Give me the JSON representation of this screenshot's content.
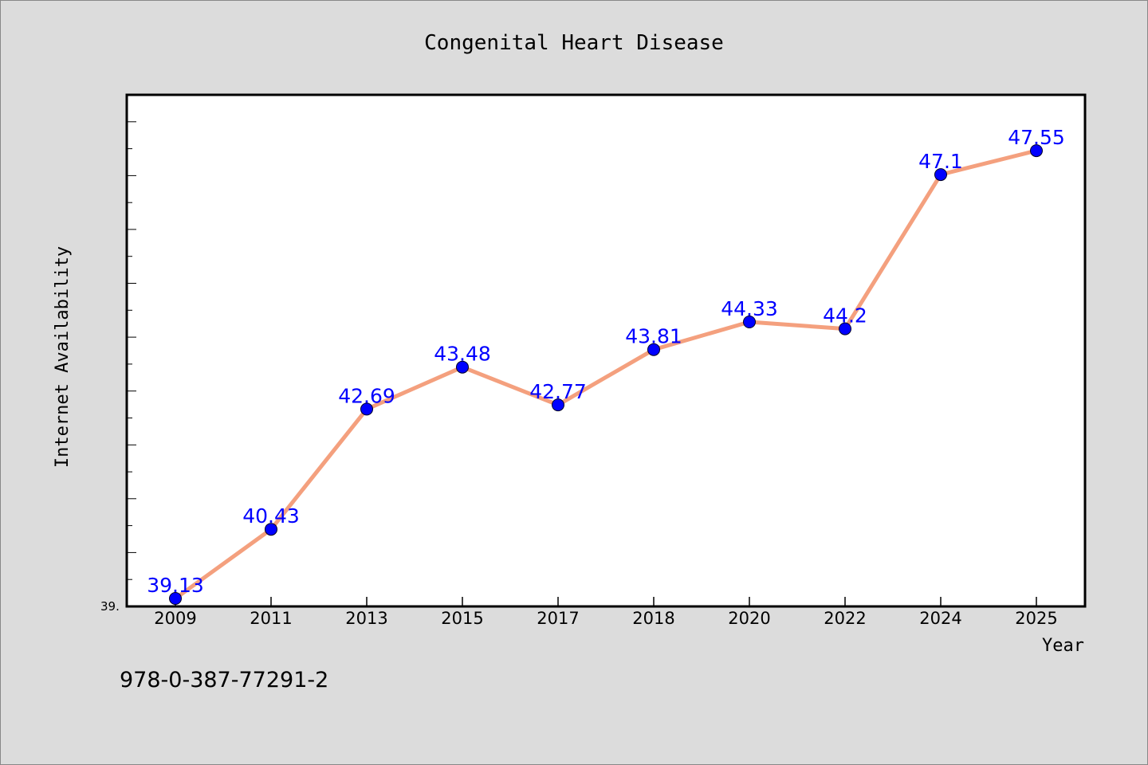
{
  "chart_data": {
    "type": "line",
    "title": "Congenital Heart Disease",
    "xlabel": "Year",
    "ylabel": "Internet Availability",
    "categories": [
      "2009",
      "2011",
      "2013",
      "2015",
      "2017",
      "2018",
      "2020",
      "2022",
      "2024",
      "2025"
    ],
    "series": [
      {
        "values": [
          39.13,
          40.43,
          42.69,
          43.48,
          42.77,
          43.81,
          44.33,
          44.2,
          47.1,
          47.55
        ],
        "data_labels": [
          "39.13",
          "40.43",
          "42.69",
          "43.48",
          "42.77",
          "43.81",
          "44.33",
          "44.2",
          "47.1",
          "47.55"
        ]
      }
    ],
    "ylim": [
      39.13,
      48.6
    ],
    "y_tick_label": "39.",
    "grid": false,
    "legend": "none",
    "colors": {
      "line": "#f4a07e",
      "marker": "#0000ff",
      "label": "#0000ff",
      "background": "#dcdcdc",
      "plot_background": "#ffffff"
    }
  },
  "footer_code": "978-0-387-77291-2"
}
